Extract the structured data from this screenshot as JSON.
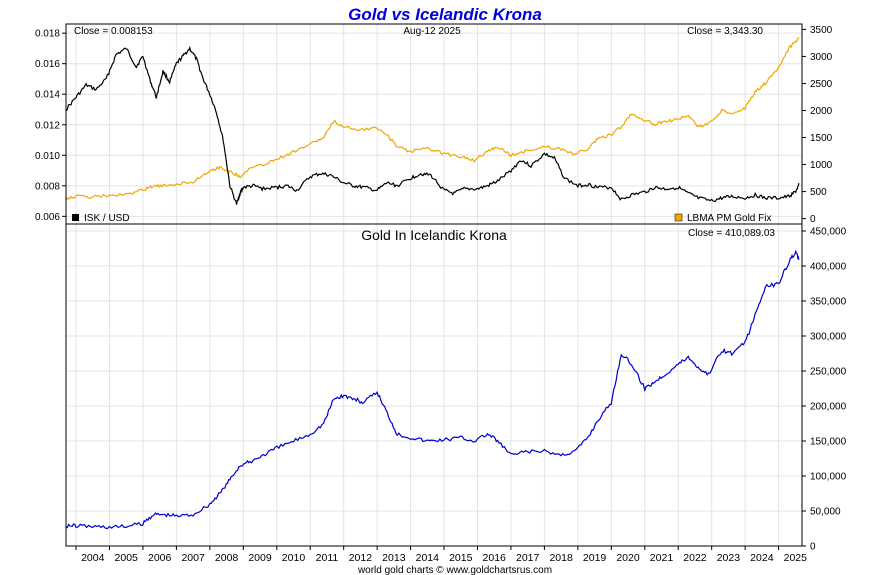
{
  "chart_data": [
    {
      "type": "line",
      "title": "Gold vs Icelandic Krona",
      "date_label": "Aug-12  2025",
      "left_axis": {
        "ticks": [
          "0.006",
          "0.008",
          "0.010",
          "0.012",
          "0.014",
          "0.016",
          "0.018"
        ],
        "ylim": [
          0.0055,
          0.0186
        ]
      },
      "right_axis": {
        "ticks": [
          "0",
          "500",
          "1000",
          "1500",
          "2000",
          "2500",
          "3000",
          "3500"
        ],
        "ylim": [
          -100,
          3600
        ]
      },
      "series": [
        {
          "name": "ISK / USD",
          "axis": "left",
          "color": "#000000",
          "close_label": "Close = 0.008153",
          "x": [
            2003.7,
            2004.0,
            2004.3,
            2004.6,
            2004.9,
            2005.2,
            2005.5,
            2005.8,
            2006.0,
            2006.2,
            2006.4,
            2006.6,
            2006.8,
            2007.0,
            2007.2,
            2007.4,
            2007.6,
            2007.8,
            2008.0,
            2008.2,
            2008.4,
            2008.6,
            2008.8,
            2008.9,
            2009.0,
            2009.3,
            2009.6,
            2010.0,
            2010.3,
            2010.6,
            2011.0,
            2011.3,
            2011.6,
            2012.0,
            2012.3,
            2012.6,
            2013.0,
            2013.3,
            2013.6,
            2014.0,
            2014.3,
            2014.6,
            2015.0,
            2015.3,
            2015.6,
            2016.0,
            2016.3,
            2016.6,
            2017.0,
            2017.3,
            2017.6,
            2018.0,
            2018.3,
            2018.6,
            2019.0,
            2019.3,
            2019.6,
            2020.0,
            2020.3,
            2020.6,
            2021.0,
            2021.3,
            2021.6,
            2022.0,
            2022.3,
            2022.6,
            2023.0,
            2023.3,
            2023.6,
            2024.0,
            2024.3,
            2024.6,
            2025.0,
            2025.3,
            2025.5,
            2025.62
          ],
          "values": [
            0.013,
            0.0138,
            0.0146,
            0.0143,
            0.015,
            0.0166,
            0.017,
            0.0158,
            0.0165,
            0.015,
            0.0138,
            0.0155,
            0.0148,
            0.016,
            0.0165,
            0.017,
            0.0163,
            0.015,
            0.014,
            0.0128,
            0.011,
            0.008,
            0.0068,
            0.0075,
            0.0079,
            0.008,
            0.0078,
            0.0079,
            0.008,
            0.0077,
            0.0086,
            0.0088,
            0.0087,
            0.0082,
            0.008,
            0.0079,
            0.0077,
            0.0082,
            0.008,
            0.0085,
            0.0088,
            0.0087,
            0.0077,
            0.0075,
            0.0078,
            0.0078,
            0.008,
            0.0083,
            0.009,
            0.0097,
            0.0093,
            0.0101,
            0.0098,
            0.0085,
            0.008,
            0.0081,
            0.0079,
            0.0079,
            0.0071,
            0.0074,
            0.0076,
            0.0079,
            0.0078,
            0.0079,
            0.0075,
            0.0072,
            0.007,
            0.0072,
            0.0073,
            0.0072,
            0.0074,
            0.0072,
            0.0072,
            0.0073,
            0.0076,
            0.0081
          ]
        },
        {
          "name": "LBMA PM Gold Fix",
          "axis": "right",
          "color": "#f0a800",
          "close_label": "Close = 3,343.30",
          "x": [
            2003.7,
            2004.0,
            2004.5,
            2005.0,
            2005.5,
            2006.0,
            2006.3,
            2006.6,
            2007.0,
            2007.5,
            2008.0,
            2008.3,
            2008.6,
            2008.9,
            2009.2,
            2009.6,
            2010.0,
            2010.5,
            2011.0,
            2011.4,
            2011.7,
            2012.0,
            2012.5,
            2013.0,
            2013.3,
            2013.6,
            2014.0,
            2014.5,
            2015.0,
            2015.5,
            2015.9,
            2016.3,
            2016.6,
            2017.0,
            2017.5,
            2018.0,
            2018.5,
            2018.9,
            2019.3,
            2019.6,
            2020.0,
            2020.3,
            2020.6,
            2021.0,
            2021.3,
            2021.6,
            2022.0,
            2022.3,
            2022.6,
            2022.9,
            2023.3,
            2023.6,
            2024.0,
            2024.3,
            2024.6,
            2025.0,
            2025.3,
            2025.62
          ],
          "values": [
            380,
            410,
            400,
            430,
            440,
            530,
            600,
            600,
            640,
            680,
            890,
            950,
            870,
            780,
            930,
            1000,
            1100,
            1240,
            1380,
            1500,
            1800,
            1700,
            1650,
            1680,
            1550,
            1330,
            1240,
            1300,
            1200,
            1150,
            1070,
            1250,
            1330,
            1170,
            1260,
            1330,
            1280,
            1200,
            1290,
            1480,
            1550,
            1700,
            1950,
            1820,
            1750,
            1780,
            1850,
            1900,
            1700,
            1750,
            1990,
            1950,
            2050,
            2350,
            2500,
            2800,
            3150,
            3343
          ]
        }
      ]
    },
    {
      "type": "line",
      "title": "Gold In Icelandic Krona",
      "credit": "world gold charts © www.goldchartsrus.com",
      "x_ticks": [
        "2004",
        "2005",
        "2006",
        "2007",
        "2008",
        "2009",
        "2010",
        "2011",
        "2012",
        "2013",
        "2014",
        "2015",
        "2016",
        "2017",
        "2018",
        "2019",
        "2020",
        "2021",
        "2022",
        "2023",
        "2024",
        "2025"
      ],
      "xlim": [
        2003.7,
        2025.7
      ],
      "y_ticks": [
        "0",
        "50,000",
        "100,000",
        "150,000",
        "200,000",
        "250,000",
        "300,000",
        "350,000",
        "400,000",
        "450,000"
      ],
      "ylim": [
        0,
        460000
      ],
      "series": [
        {
          "name": "Gold In Icelandic Krona",
          "color": "#0000cc",
          "close_label": "Close = 410,089.03",
          "x": [
            2003.7,
            2004.0,
            2004.5,
            2005.0,
            2005.5,
            2006.0,
            2006.3,
            2006.6,
            2007.0,
            2007.5,
            2008.0,
            2008.3,
            2008.6,
            2008.9,
            2009.2,
            2009.6,
            2010.0,
            2010.5,
            2011.0,
            2011.4,
            2011.7,
            2012.0,
            2012.3,
            2012.6,
            2013.0,
            2013.3,
            2013.6,
            2014.0,
            2014.5,
            2015.0,
            2015.5,
            2015.9,
            2016.3,
            2016.6,
            2017.0,
            2017.5,
            2018.0,
            2018.5,
            2018.9,
            2019.3,
            2019.6,
            2020.0,
            2020.3,
            2020.6,
            2021.0,
            2021.3,
            2021.6,
            2022.0,
            2022.3,
            2022.6,
            2022.9,
            2023.3,
            2023.6,
            2024.0,
            2024.3,
            2024.6,
            2025.0,
            2025.3,
            2025.5,
            2025.62
          ],
          "values": [
            29000,
            29000,
            28000,
            27000,
            28000,
            32000,
            45000,
            45000,
            43000,
            45000,
            60000,
            75000,
            95000,
            115000,
            120000,
            130000,
            140000,
            150000,
            160000,
            175000,
            210000,
            215000,
            210000,
            205000,
            220000,
            190000,
            160000,
            155000,
            150000,
            152000,
            155000,
            150000,
            160000,
            150000,
            130000,
            135000,
            135000,
            130000,
            135000,
            155000,
            180000,
            205000,
            275000,
            260000,
            225000,
            235000,
            245000,
            260000,
            270000,
            255000,
            245000,
            280000,
            275000,
            290000,
            330000,
            370000,
            375000,
            405000,
            420000,
            410089
          ]
        }
      ]
    }
  ]
}
